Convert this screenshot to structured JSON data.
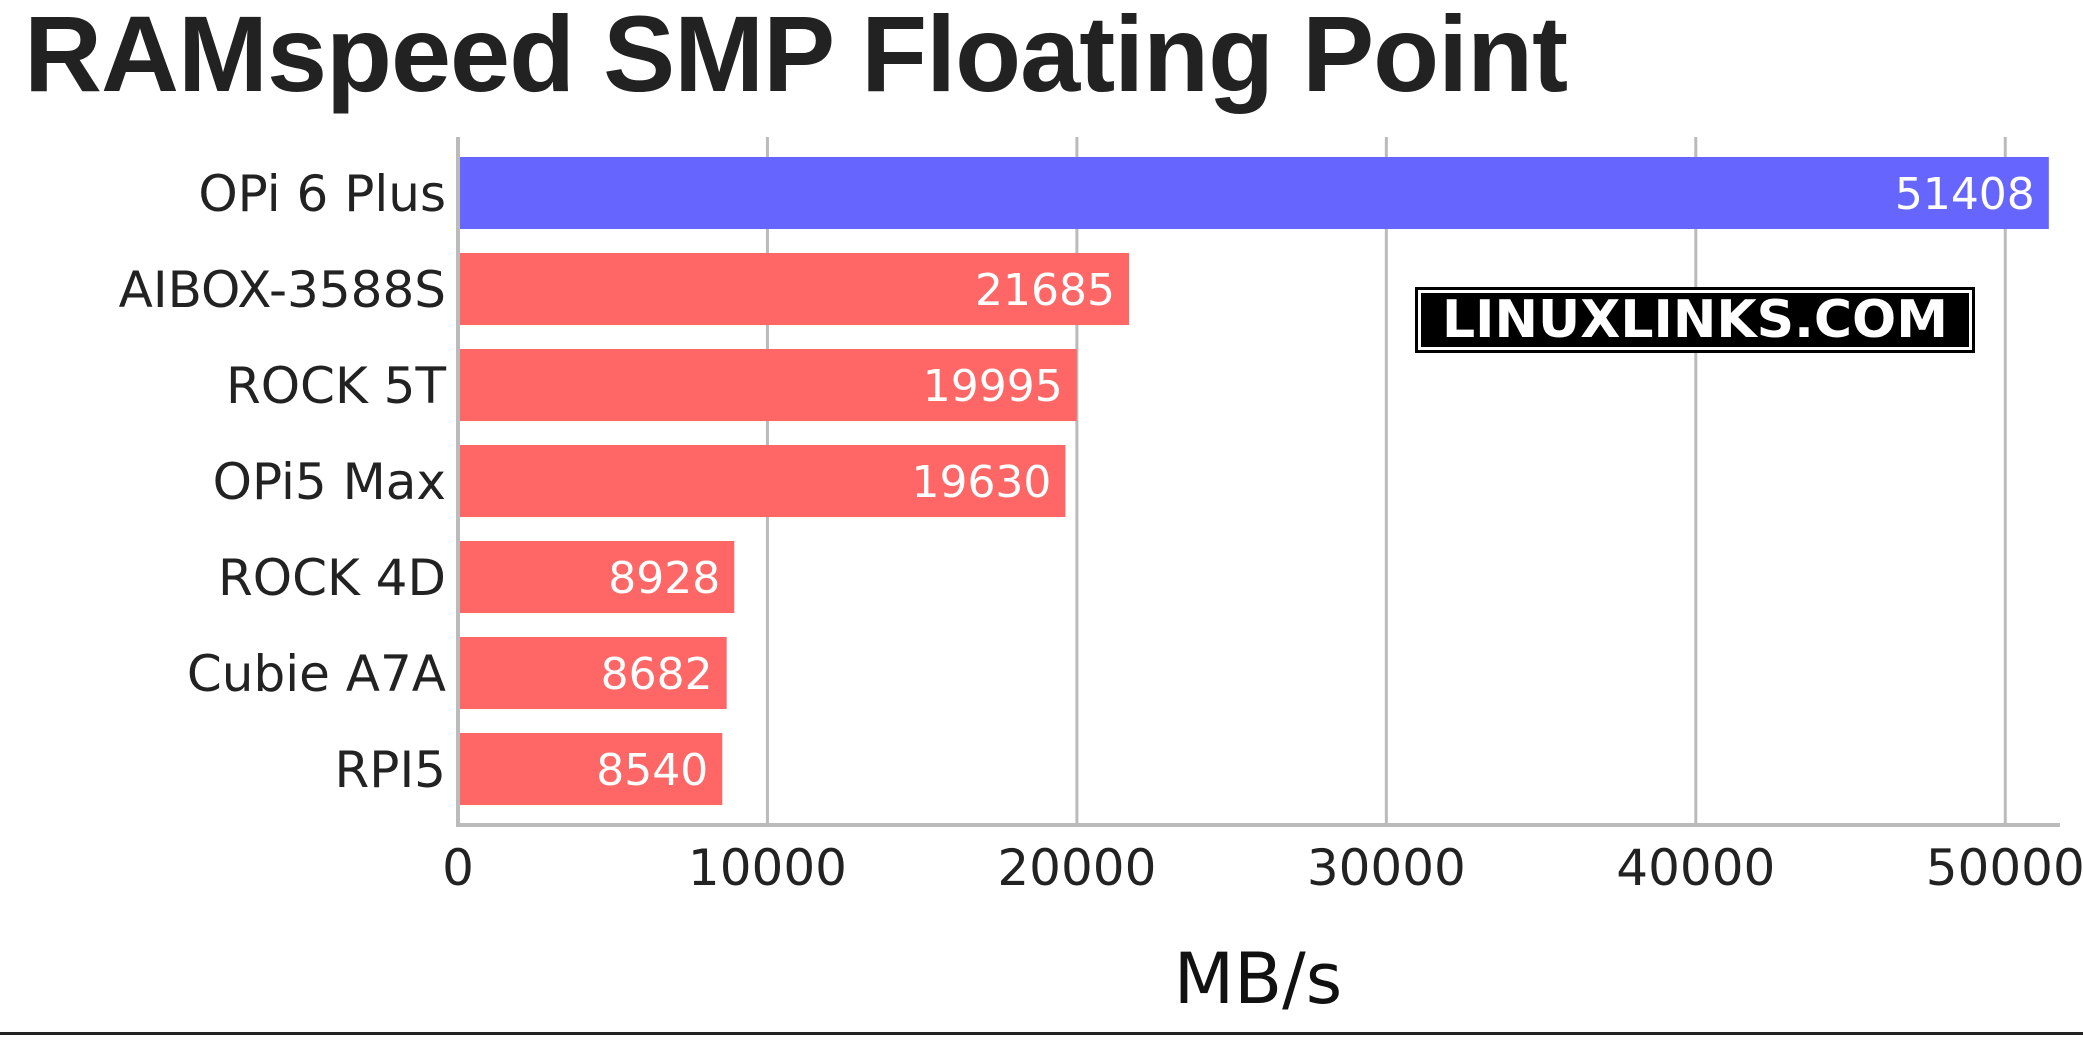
{
  "chart_data": {
    "type": "bar",
    "orientation": "horizontal",
    "title": "RAMspeed SMP Floating Point",
    "xlabel": "MB/s",
    "ylabel": "",
    "categories": [
      "OPi 6 Plus",
      "AIBOX-3588S",
      "ROCK 5T",
      "OPi5 Max",
      "ROCK 4D",
      "Cubie A7A",
      "RPI5"
    ],
    "values": [
      51408,
      21685,
      19995,
      19630,
      8928,
      8682,
      8540
    ],
    "bar_colors": [
      "#6666ff",
      "#ff6666",
      "#ff6666",
      "#ff6666",
      "#ff6666",
      "#ff6666",
      "#ff6666"
    ],
    "xlim": [
      0,
      51800
    ],
    "xticks": [
      0,
      10000,
      20000,
      30000,
      40000,
      50000
    ],
    "grid": "vertical",
    "legend": "none"
  },
  "watermark": "LINUXLINKS.COM"
}
